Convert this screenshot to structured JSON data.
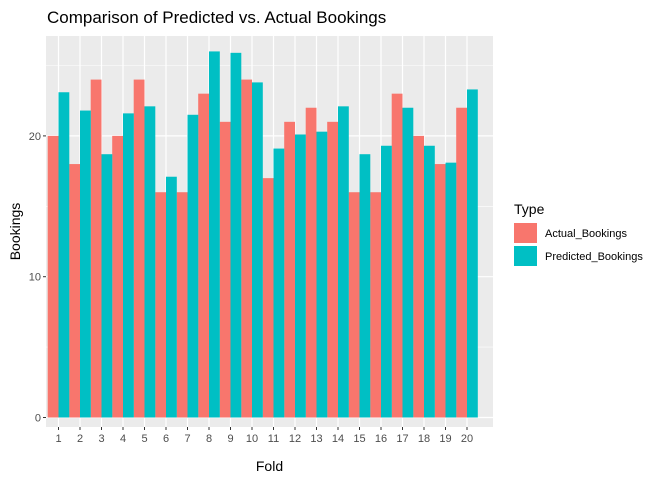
{
  "chart_data": {
    "type": "bar",
    "title": "Comparison of Predicted vs. Actual Bookings",
    "xlabel": "Fold",
    "ylabel": "Bookings",
    "ylim": [
      0,
      27.5
    ],
    "yticks": [
      0,
      10,
      20
    ],
    "grid": true,
    "legend_position": "right",
    "legend_title": "Type",
    "categories": [
      "1",
      "2",
      "3",
      "4",
      "5",
      "6",
      "7",
      "8",
      "9",
      "10",
      "11",
      "12",
      "13",
      "14",
      "15",
      "16",
      "17",
      "18",
      "19",
      "20"
    ],
    "series": [
      {
        "name": "Actual_Bookings",
        "color": "#F8766D",
        "values": [
          20,
          18,
          24,
          20,
          24,
          16,
          16,
          23,
          21,
          24,
          17,
          21,
          22,
          21,
          16,
          16,
          23,
          20,
          18,
          22
        ]
      },
      {
        "name": "Predicted_Bookings",
        "color": "#00BFC4",
        "values": [
          23.1,
          21.8,
          18.7,
          21.6,
          22.1,
          17.1,
          21.5,
          26.0,
          25.9,
          23.8,
          19.1,
          20.1,
          20.3,
          22.1,
          18.7,
          19.3,
          22.0,
          19.3,
          18.1,
          23.3
        ]
      }
    ]
  }
}
